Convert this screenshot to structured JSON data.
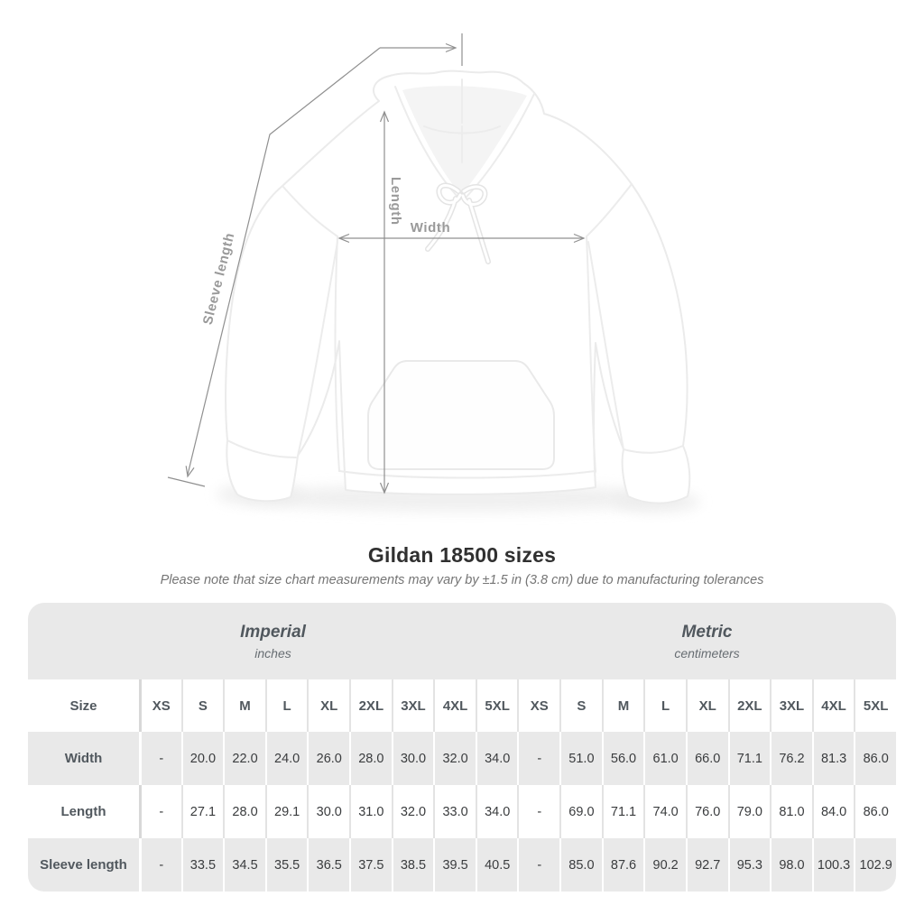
{
  "diagram": {
    "sleeve_length_label": "Sleeve length",
    "length_label": "Length",
    "width_label": "Width"
  },
  "title": "Gildan 18500 sizes",
  "subtitle": "Please note that size chart measurements may vary by ±1.5 in (3.8 cm) due to manufacturing tolerances",
  "table": {
    "size_label": "Size",
    "unit_groups": [
      {
        "name": "Imperial",
        "unit": "inches"
      },
      {
        "name": "Metric",
        "unit": "centimeters"
      }
    ],
    "sizes": [
      "XS",
      "S",
      "M",
      "L",
      "XL",
      "2XL",
      "3XL",
      "4XL",
      "5XL"
    ],
    "rows": [
      {
        "label": "Width",
        "imperial": [
          "-",
          "20.0",
          "22.0",
          "24.0",
          "26.0",
          "28.0",
          "30.0",
          "32.0",
          "34.0"
        ],
        "metric": [
          "-",
          "51.0",
          "56.0",
          "61.0",
          "66.0",
          "71.1",
          "76.2",
          "81.3",
          "86.0"
        ]
      },
      {
        "label": "Length",
        "imperial": [
          "-",
          "27.1",
          "28.0",
          "29.1",
          "30.0",
          "31.0",
          "32.0",
          "33.0",
          "34.0"
        ],
        "metric": [
          "-",
          "69.0",
          "71.1",
          "74.0",
          "76.0",
          "79.0",
          "81.0",
          "84.0",
          "86.0"
        ]
      },
      {
        "label": "Sleeve length",
        "imperial": [
          "-",
          "33.5",
          "34.5",
          "35.5",
          "36.5",
          "37.5",
          "38.5",
          "39.5",
          "40.5"
        ],
        "metric": [
          "-",
          "85.0",
          "87.6",
          "90.2",
          "92.7",
          "95.3",
          "98.0",
          "100.3",
          "102.9"
        ]
      }
    ]
  },
  "colors": {
    "dimension_line": "#909090",
    "dimension_label": "#9a9a9a",
    "table_shaded_row": "#e9e9e9",
    "header_text": "#51585e",
    "cell_text": "#3a3c3e"
  }
}
